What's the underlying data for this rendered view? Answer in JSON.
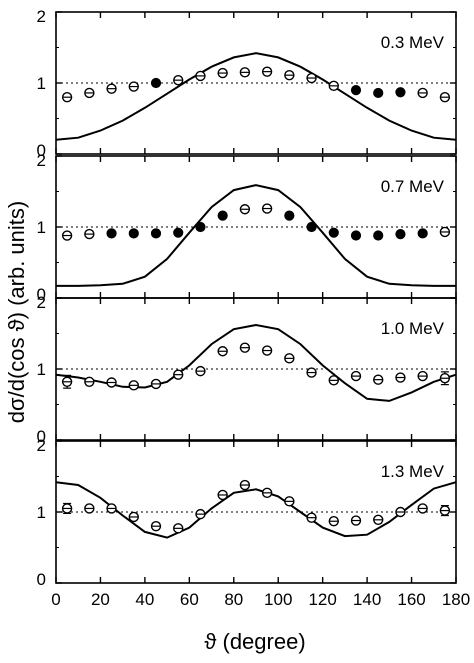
{
  "chart_data": [
    {
      "type": "scatter",
      "energy_label": "0.3 MeV",
      "ylim": [
        0,
        2
      ],
      "y_ticks": [
        "0",
        "1",
        "2"
      ],
      "reference_line": 1,
      "points": {
        "x": [
          5,
          15,
          25,
          35,
          45,
          55,
          65,
          75,
          85,
          95,
          105,
          115,
          125,
          135,
          145,
          155,
          165,
          175
        ],
        "y": [
          0.8,
          0.86,
          0.92,
          0.95,
          1.0,
          1.04,
          1.1,
          1.14,
          1.15,
          1.16,
          1.11,
          1.07,
          0.96,
          0.9,
          0.86,
          0.87,
          0.86,
          0.8
        ],
        "filled": [
          false,
          false,
          false,
          false,
          true,
          false,
          false,
          false,
          false,
          false,
          false,
          false,
          false,
          true,
          true,
          true,
          false,
          false
        ]
      },
      "curve": {
        "x": [
          0,
          10,
          20,
          30,
          40,
          50,
          60,
          70,
          80,
          90,
          100,
          110,
          120,
          130,
          140,
          150,
          160,
          170,
          180
        ],
        "y": [
          0.2,
          0.23,
          0.33,
          0.47,
          0.65,
          0.85,
          1.05,
          1.23,
          1.36,
          1.42,
          1.36,
          1.23,
          1.05,
          0.85,
          0.65,
          0.47,
          0.33,
          0.23,
          0.2
        ]
      }
    },
    {
      "type": "scatter",
      "energy_label": "0.7 MeV",
      "ylim": [
        0,
        2
      ],
      "y_ticks": [
        "0",
        "1",
        "2"
      ],
      "reference_line": 1,
      "points": {
        "x": [
          5,
          15,
          25,
          35,
          45,
          55,
          65,
          75,
          85,
          95,
          105,
          115,
          125,
          135,
          145,
          155,
          165,
          175
        ],
        "y": [
          0.88,
          0.9,
          0.91,
          0.91,
          0.91,
          0.92,
          1.0,
          1.16,
          1.25,
          1.26,
          1.16,
          1.0,
          0.92,
          0.88,
          0.88,
          0.9,
          0.91,
          0.93
        ],
        "filled": [
          false,
          false,
          true,
          true,
          true,
          true,
          true,
          true,
          false,
          false,
          true,
          true,
          true,
          true,
          true,
          true,
          true,
          false
        ]
      },
      "curve": {
        "x": [
          0,
          10,
          20,
          30,
          40,
          50,
          60,
          70,
          80,
          90,
          100,
          110,
          120,
          130,
          140,
          150,
          160,
          170,
          180
        ],
        "y": [
          0.17,
          0.17,
          0.18,
          0.2,
          0.3,
          0.55,
          0.92,
          1.28,
          1.52,
          1.59,
          1.52,
          1.28,
          0.92,
          0.55,
          0.3,
          0.2,
          0.18,
          0.17,
          0.17
        ]
      }
    },
    {
      "type": "scatter",
      "energy_label": "1.0 MeV",
      "ylim": [
        0,
        2
      ],
      "y_ticks": [
        "0",
        "1",
        "2"
      ],
      "reference_line": 1,
      "points": {
        "x": [
          5,
          15,
          25,
          35,
          45,
          55,
          65,
          75,
          85,
          95,
          105,
          115,
          125,
          135,
          145,
          155,
          165,
          175
        ],
        "y": [
          0.82,
          0.82,
          0.81,
          0.77,
          0.79,
          0.92,
          0.97,
          1.25,
          1.3,
          1.26,
          1.15,
          0.95,
          0.84,
          0.9,
          0.85,
          0.88,
          0.9,
          0.87
        ],
        "err": [
          0.09,
          0,
          0,
          0,
          0,
          0,
          0,
          0,
          0,
          0,
          0,
          0,
          0,
          0,
          0,
          0,
          0,
          0.09
        ]
      },
      "curve": {
        "x": [
          0,
          10,
          20,
          30,
          40,
          50,
          60,
          70,
          80,
          90,
          100,
          110,
          120,
          130,
          140,
          150,
          160,
          170,
          180
        ],
        "y": [
          0.92,
          0.88,
          0.82,
          0.75,
          0.74,
          0.82,
          1.05,
          1.35,
          1.56,
          1.62,
          1.56,
          1.35,
          1.05,
          0.8,
          0.58,
          0.55,
          0.67,
          0.82,
          0.92
        ]
      }
    },
    {
      "type": "scatter",
      "energy_label": "1.3 MeV",
      "ylim": [
        0,
        2
      ],
      "y_ticks": [
        "0",
        "1",
        "2"
      ],
      "reference_line": 1,
      "points": {
        "x": [
          5,
          15,
          25,
          35,
          45,
          55,
          65,
          75,
          85,
          95,
          105,
          115,
          125,
          135,
          145,
          155,
          165,
          175
        ],
        "y": [
          1.05,
          1.05,
          1.05,
          0.93,
          0.8,
          0.77,
          0.97,
          1.24,
          1.38,
          1.27,
          1.15,
          0.92,
          0.87,
          0.88,
          0.89,
          1.0,
          1.05,
          1.02
        ],
        "err": [
          0.07,
          0,
          0,
          0,
          0,
          0,
          0,
          0,
          0,
          0,
          0,
          0,
          0,
          0,
          0,
          0,
          0,
          0.07
        ]
      },
      "curve": {
        "x": [
          0,
          10,
          20,
          30,
          40,
          50,
          60,
          70,
          80,
          90,
          100,
          110,
          120,
          130,
          140,
          150,
          160,
          170,
          180
        ],
        "y": [
          1.42,
          1.38,
          1.2,
          0.95,
          0.72,
          0.64,
          0.78,
          1.05,
          1.27,
          1.32,
          1.22,
          1.0,
          0.78,
          0.66,
          0.68,
          0.86,
          1.1,
          1.33,
          1.42
        ]
      }
    }
  ],
  "axes": {
    "xlim": [
      0,
      180
    ],
    "x_ticks": [
      "0",
      "20",
      "40",
      "60",
      "80",
      "100",
      "120",
      "140",
      "160",
      "180"
    ],
    "xlabel": "ϑ (degree)",
    "ylabel": "dσ/d(cos ϑ) (arb. units)"
  }
}
